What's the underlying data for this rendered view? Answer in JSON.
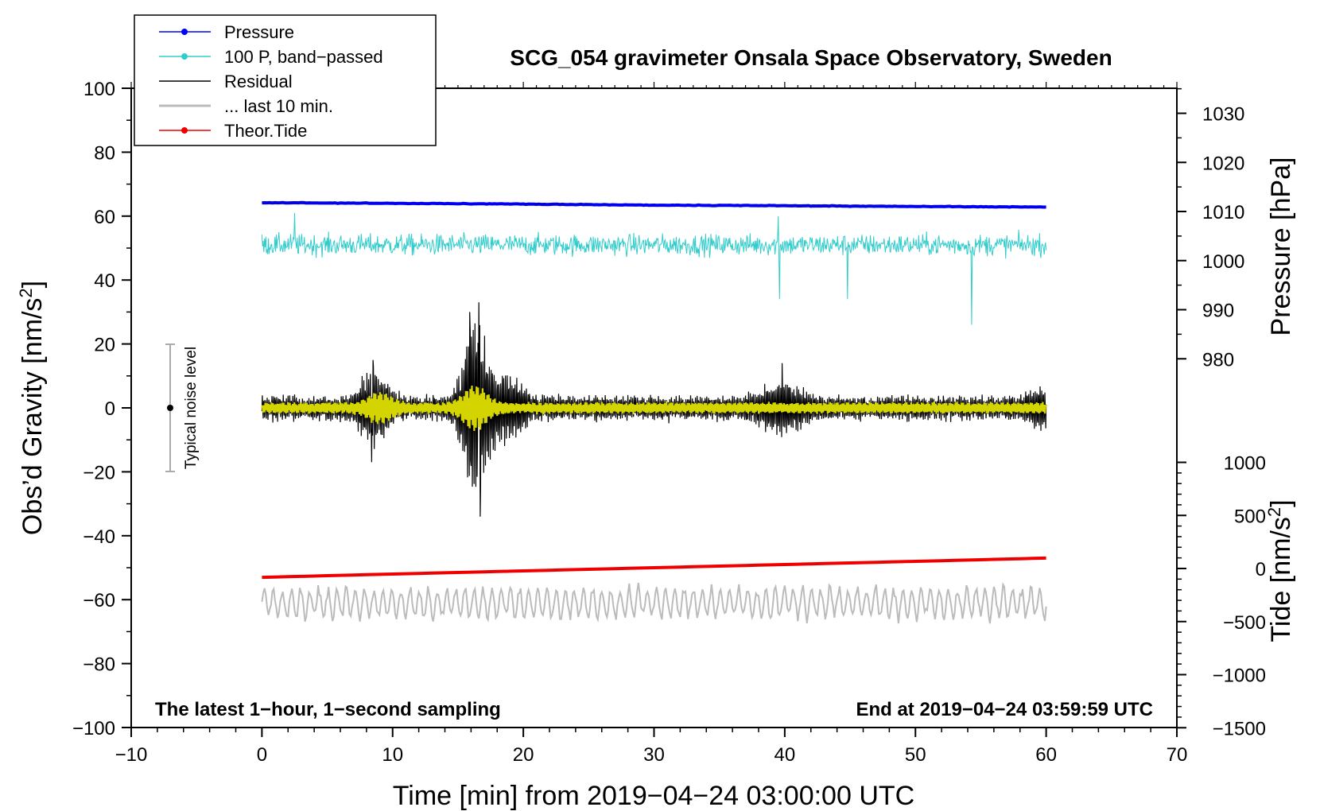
{
  "chart_data": {
    "type": "line",
    "title": "SCG_054 gravimeter Onsala Space Observatory, Sweden",
    "xlabel": "Time [min] from 2019−04−24 03:00:00 UTC",
    "ylabel_left": "Obs’d Gravity [nm/s²]",
    "ylabel_right_top": "Pressure [hPa]",
    "ylabel_right_bottom": "Tide [nm/s²]",
    "xlim": [
      -10,
      70
    ],
    "ylim": [
      -100,
      100
    ],
    "x_ticks": [
      "−10",
      "0",
      "10",
      "20",
      "30",
      "40",
      "50",
      "60",
      "70"
    ],
    "y_ticks": [
      "−100",
      "−80",
      "−60",
      "−40",
      "−20",
      "0",
      "20",
      "40",
      "60",
      "80",
      "100"
    ],
    "pressure_ticks": [
      "980",
      "990",
      "1000",
      "1010",
      "1020",
      "1030"
    ],
    "tide_ticks": [
      "−1500",
      "−1000",
      "−500",
      "0",
      "500",
      "1000"
    ],
    "legend": [
      {
        "label": "Pressure",
        "color": "#0000ee",
        "marker": true
      },
      {
        "label": "100 P, band−passed",
        "color": "#33cccc",
        "marker": true
      },
      {
        "label": "Residual",
        "color": "#000000",
        "marker": false
      },
      {
        "label": "... last 10 min.",
        "color": "#bbbbbb",
        "marker": false
      },
      {
        "label": "Theor.Tide",
        "color": "#ee0000",
        "marker": true
      }
    ],
    "series": [
      {
        "name": "Pressure",
        "axis": "pressure_hPa",
        "x": [
          0,
          15,
          30,
          45,
          60
        ],
        "values": [
          1011.8,
          1011.6,
          1011.3,
          1011.1,
          1010.9
        ]
      },
      {
        "name": "100 P, band-passed",
        "axis": "gravity_plot_units",
        "center": 51,
        "typical_amplitude": 4,
        "spikes": [
          {
            "x": 2.5,
            "y": 61
          },
          {
            "x": 39.5,
            "y": 60
          },
          {
            "x": 39.6,
            "y": 34
          },
          {
            "x": 44.8,
            "y": 34
          },
          {
            "x": 54.3,
            "y": 26
          }
        ]
      },
      {
        "name": "Residual",
        "axis": "gravity_nm_s2",
        "center": 0,
        "typical_amplitude": 4,
        "peaks": [
          {
            "x": 8.5,
            "y": 15
          },
          {
            "x": 8.4,
            "y": -17
          },
          {
            "x": 15.9,
            "y": 30
          },
          {
            "x": 16.6,
            "y": 33
          },
          {
            "x": 16.7,
            "y": -34
          },
          {
            "x": 39.8,
            "y": 14
          }
        ]
      },
      {
        "name": "Long period (yellow)",
        "axis": "gravity_nm_s2",
        "center": 0,
        "typical_amplitude": 2
      },
      {
        "name": "Theor.Tide",
        "axis": "tide_nm_s2",
        "x": [
          0,
          30,
          60
        ],
        "values": [
          -3,
          0,
          3
        ]
      },
      {
        "name": "... last 10 min.",
        "axis": "gravity_plot_units",
        "center": -61,
        "typical_amplitude": 5
      }
    ]
  },
  "noise_label": "Typical noise level",
  "note_left": "The latest 1−hour, 1−second sampling",
  "note_right": "End at 2019−04−24 03:59:59 UTC"
}
